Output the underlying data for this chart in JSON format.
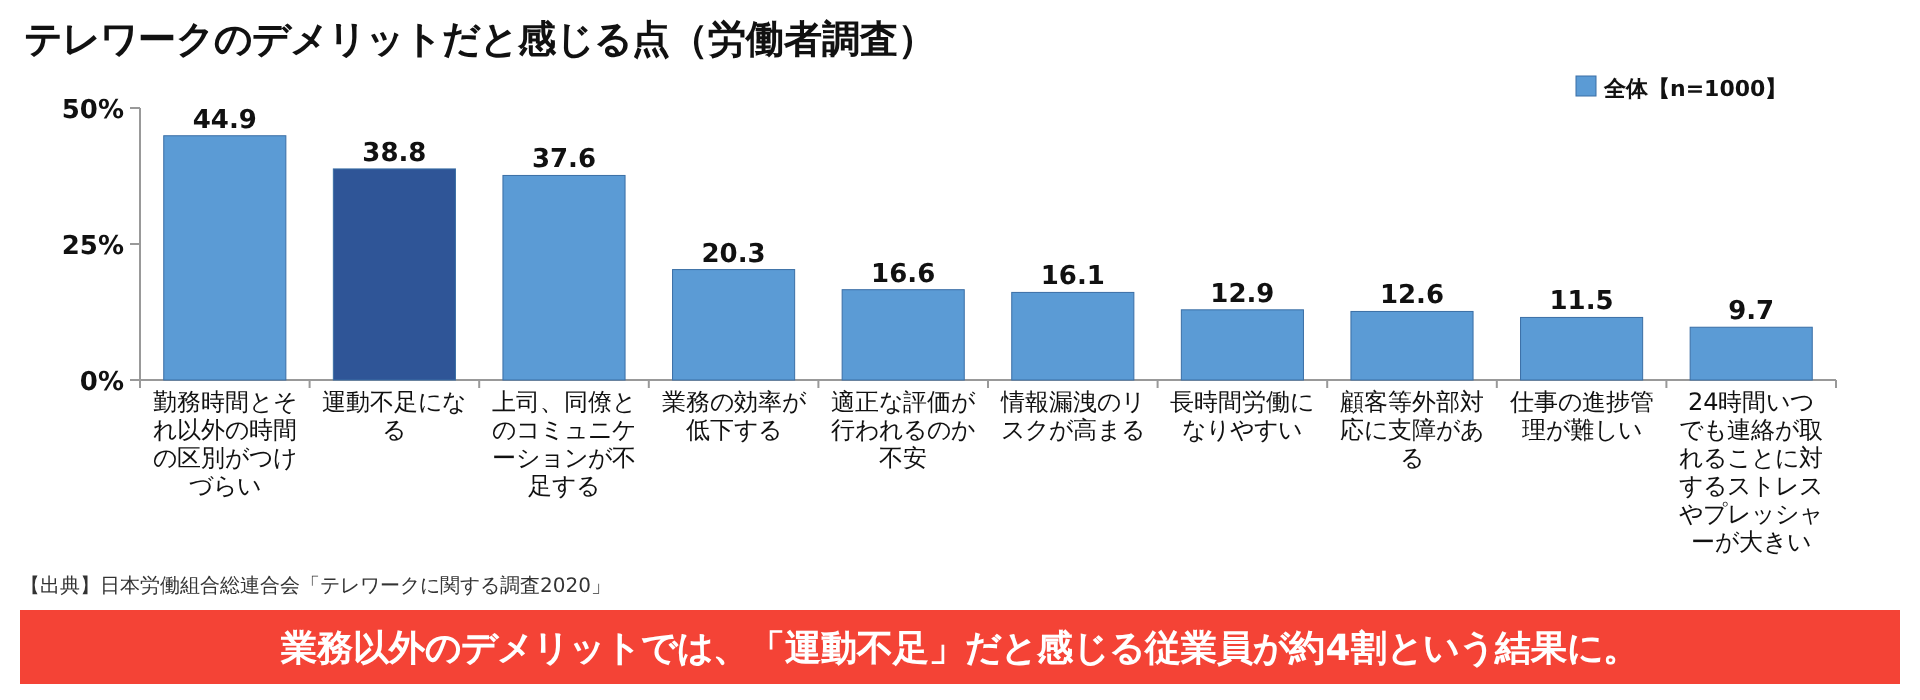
{
  "chart_data": {
    "type": "bar",
    "title": "テレワークのデメリットだと感じる点（労働者調査）",
    "categories": [
      "勤務時間とそれ以外の時間の区別がつけづらい",
      "運動不足になる",
      "上司、同僚とのコミュニケーションが不足する",
      "業務の効率が低下する",
      "適正な評価が行われるのか不安",
      "情報漏洩のリスクが高まる",
      "長時間労働になりやすい",
      "顧客等外部対応に支障がある",
      "仕事の進捗管理が難しい",
      "24時間いつでも連絡が取れることに対するストレスやプレッシャーが大きい"
    ],
    "series": [
      {
        "name": "全体【n=1000】",
        "color": "#5b9bd5",
        "colors": [
          "#5b9bd5",
          "#2f5597",
          "#5b9bd5",
          "#5b9bd5",
          "#5b9bd5",
          "#5b9bd5",
          "#5b9bd5",
          "#5b9bd5",
          "#5b9bd5",
          "#5b9bd5"
        ],
        "values": [
          44.9,
          38.8,
          37.6,
          20.3,
          16.6,
          16.1,
          12.9,
          12.6,
          11.5,
          9.7
        ]
      }
    ],
    "ylim": [
      0,
      50
    ],
    "yticks": [
      {
        "value": 0,
        "label": "0%"
      },
      {
        "value": 25,
        "label": "25%"
      },
      {
        "value": 50,
        "label": "50%"
      }
    ],
    "data_labels": true,
    "legend": "top right",
    "grid": false,
    "annotations": [
      "【出典】日本労働組合総連合会「テレワークに関する調査2020」",
      "業務以外のデメリットでは、「運動不足」だと感じる従業員が約4割という結果に。"
    ]
  }
}
